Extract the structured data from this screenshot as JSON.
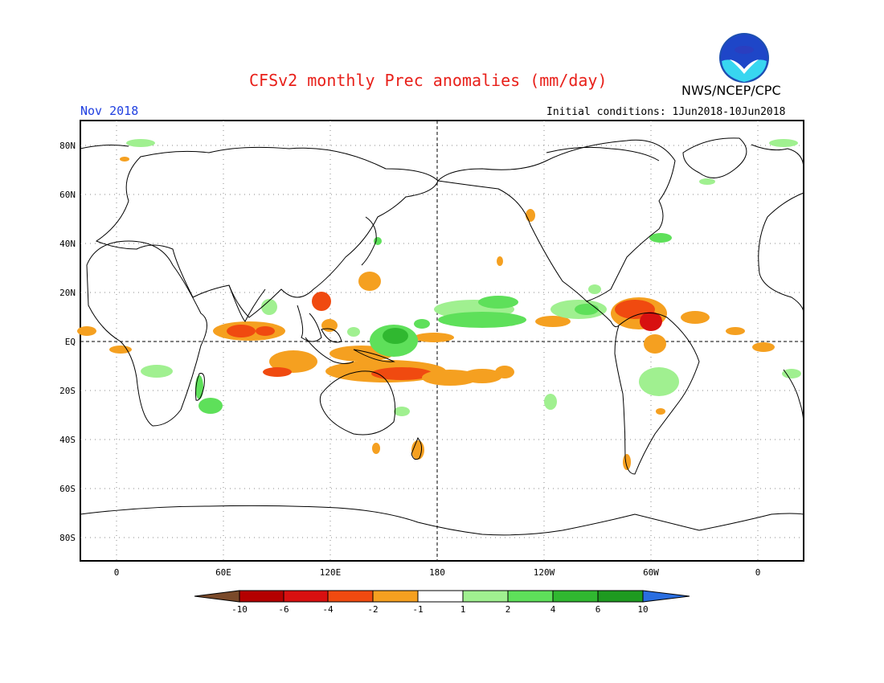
{
  "header": {
    "title": "CFSv2 monthly Prec anomalies (mm/day)",
    "agency": "NWS/NCEP/CPC",
    "month": "Nov 2018",
    "initial_conditions": "Initial conditions: 1Jun2018-10Jun2018",
    "logo_text": "NOAA"
  },
  "axes": {
    "lat_labels": [
      "80N",
      "60N",
      "40N",
      "20N",
      "EQ",
      "20S",
      "40S",
      "60S",
      "80S"
    ],
    "lon_labels": [
      "0",
      "60E",
      "120E",
      "180",
      "120W",
      "60W",
      "0"
    ]
  },
  "colorbar": {
    "labels": [
      "-10",
      "-6",
      "-4",
      "-2",
      "-1",
      "1",
      "2",
      "4",
      "6",
      "10"
    ],
    "colors": [
      "#7a4a2a",
      "#b40000",
      "#d81010",
      "#f04a10",
      "#f5a020",
      "#ffffff",
      "#a0f090",
      "#5ee05a",
      "#30b830",
      "#1e9a20",
      "#2a6ee0"
    ]
  },
  "colors": {
    "title": "#e8201a",
    "month": "#2040e0",
    "dry_light": "#f5a020",
    "dry_mid": "#f04a10",
    "dry_strong": "#d81010",
    "wet_light": "#a0f090",
    "wet_mid": "#5ee05a",
    "wet_strong": "#30b830"
  }
}
